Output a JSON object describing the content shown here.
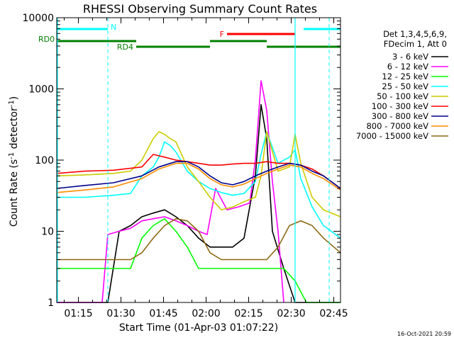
{
  "chart_data": {
    "type": "line",
    "title": "RHESSI Observing Summary Count Rates",
    "xlabel": "Start Time (01-Apr-03 01:07:22)",
    "ylabel_main": "Count Rate (s",
    "ylabel_sup1": "-1",
    "ylabel_mid": " detector",
    "ylabel_sup2": "-1",
    "ylabel_end": ")",
    "x_unit": "minutes after 01:07:22",
    "xlim": [
      0,
      100
    ],
    "ylim": [
      1,
      10000
    ],
    "yscale": "log",
    "x_ticks": [
      {
        "label": "01:15",
        "value": 7.63
      },
      {
        "label": "01:30",
        "value": 22.63
      },
      {
        "label": "01:45",
        "value": 37.63
      },
      {
        "label": "02:00",
        "value": 52.63
      },
      {
        "label": "02:15",
        "value": 67.63
      },
      {
        "label": "02:30",
        "value": 82.63
      },
      {
        "label": "02:45",
        "value": 97.63
      }
    ],
    "y_ticks": [
      {
        "label": "1",
        "value": 1
      },
      {
        "label": "10",
        "value": 10
      },
      {
        "label": "100",
        "value": 100
      },
      {
        "label": "1000",
        "value": 1000
      },
      {
        "label": "10000",
        "value": 10000
      }
    ],
    "legend_header": [
      "Det 1,3,4,5,6,9,",
      "FDecim 1, Att 0"
    ],
    "legend_position": "right",
    "series": [
      {
        "name": "3 - 6 keV",
        "color": "#000000",
        "x": [
          0,
          5,
          10,
          15,
          18,
          22,
          26,
          30,
          34,
          38,
          42,
          46,
          50,
          54,
          58,
          62,
          66,
          70,
          72,
          74,
          76,
          80,
          84,
          88,
          92,
          96,
          100
        ],
        "y": [
          1,
          1,
          1,
          1,
          1,
          10,
          12,
          16,
          18,
          20,
          16,
          12,
          8,
          6,
          6,
          6,
          8,
          60,
          600,
          200,
          10,
          3,
          1,
          1,
          1,
          1,
          1
        ]
      },
      {
        "name": "6 - 12 keV",
        "color": "#ff00ff",
        "x": [
          0,
          10,
          16,
          18,
          22,
          26,
          30,
          34,
          38,
          42,
          46,
          50,
          53,
          56,
          60,
          64,
          68,
          70,
          72,
          74,
          76,
          78,
          80
        ],
        "y": [
          1,
          1,
          1,
          9,
          10,
          11,
          14,
          15,
          16,
          14,
          12,
          10,
          9,
          40,
          20,
          22,
          25,
          100,
          1300,
          500,
          50,
          10,
          1
        ]
      },
      {
        "name": "12 - 25 keV",
        "color": "#00ff00",
        "x": [
          0,
          10,
          20,
          26,
          30,
          34,
          38,
          42,
          46,
          50,
          54,
          58,
          62,
          66,
          70,
          72,
          76,
          80,
          84,
          88,
          92,
          96,
          100
        ],
        "y": [
          3,
          3,
          3,
          3,
          8,
          12,
          15,
          10,
          6,
          3,
          3,
          3,
          3,
          3,
          3,
          3,
          3,
          3,
          2,
          1,
          1,
          1,
          1
        ]
      },
      {
        "name": "25 - 50 keV",
        "color": "#00ffff",
        "x": [
          0,
          10,
          20,
          26,
          30,
          34,
          36,
          38,
          40,
          42,
          46,
          50,
          54,
          58,
          62,
          66,
          70,
          72,
          74,
          78,
          82,
          84,
          86,
          90,
          94,
          100
        ],
        "y": [
          30,
          30,
          32,
          34,
          60,
          80,
          110,
          180,
          160,
          130,
          70,
          50,
          40,
          35,
          32,
          34,
          50,
          120,
          250,
          90,
          110,
          140,
          55,
          22,
          12,
          8
        ]
      },
      {
        "name": "50 - 100 keV",
        "color": "#cccc00",
        "x": [
          0,
          10,
          20,
          26,
          30,
          34,
          36,
          38,
          40,
          42,
          46,
          50,
          54,
          58,
          62,
          66,
          70,
          72,
          74,
          78,
          82,
          84,
          86,
          90,
          94,
          100
        ],
        "y": [
          60,
          62,
          65,
          70,
          100,
          200,
          250,
          230,
          200,
          180,
          80,
          50,
          30,
          20,
          22,
          26,
          30,
          60,
          250,
          70,
          80,
          230,
          90,
          30,
          20,
          16
        ]
      },
      {
        "name": "100 - 300 keV",
        "color": "#ff0000",
        "x": [
          0,
          10,
          20,
          30,
          34,
          38,
          42,
          46,
          50,
          54,
          58,
          62,
          66,
          70,
          74,
          78,
          82,
          86,
          90,
          94,
          100
        ],
        "y": [
          65,
          70,
          72,
          80,
          120,
          110,
          100,
          95,
          90,
          85,
          85,
          88,
          90,
          90,
          95,
          90,
          90,
          85,
          75,
          60,
          40
        ]
      },
      {
        "name": "300 - 800 keV",
        "color": "#00008b",
        "x": [
          0,
          10,
          20,
          30,
          36,
          42,
          46,
          50,
          54,
          58,
          62,
          66,
          70,
          74,
          78,
          82,
          86,
          90,
          94,
          100
        ],
        "y": [
          40,
          44,
          48,
          60,
          80,
          95,
          95,
          80,
          60,
          48,
          45,
          50,
          60,
          70,
          80,
          90,
          85,
          70,
          60,
          40
        ]
      },
      {
        "name": "800 - 7000 keV",
        "color": "#ff8c00",
        "x": [
          0,
          10,
          20,
          30,
          36,
          42,
          46,
          50,
          54,
          58,
          62,
          66,
          70,
          74,
          78,
          82,
          86,
          90,
          94,
          100
        ],
        "y": [
          35,
          38,
          42,
          55,
          75,
          90,
          90,
          75,
          55,
          45,
          42,
          46,
          55,
          65,
          75,
          85,
          80,
          65,
          55,
          38
        ]
      },
      {
        "name": "7000 - 15000 keV",
        "color": "#8b6914",
        "x": [
          0,
          10,
          20,
          26,
          30,
          34,
          38,
          42,
          46,
          50,
          54,
          58,
          62,
          66,
          70,
          74,
          78,
          82,
          86,
          90,
          94,
          100
        ],
        "y": [
          4,
          4,
          4,
          4,
          5,
          8,
          12,
          15,
          14,
          10,
          5,
          4,
          4,
          4,
          4,
          4,
          6,
          12,
          14,
          12,
          8,
          5
        ]
      }
    ],
    "annotations": {
      "bars": [
        {
          "label": "N",
          "color": "#00ffff",
          "x1": 0,
          "x2": 18
        },
        {
          "label": "",
          "color": "#00ffff",
          "x1": 87,
          "x2": 100
        },
        {
          "label": "F",
          "color": "#ff0000",
          "x1": 60,
          "x2": 84
        },
        {
          "label": "RD0",
          "color": "#008000",
          "x1": 0,
          "x2": 28
        },
        {
          "label": "",
          "color": "#008000",
          "x1": 54,
          "x2": 74
        },
        {
          "label": "RD4",
          "color": "#008000",
          "x1": 28,
          "x2": 54
        },
        {
          "label": "",
          "color": "#008000",
          "x1": 74,
          "x2": 100
        }
      ],
      "vlines_dashed": [
        18,
        100
      ],
      "vlines_solid": [
        0,
        84
      ]
    },
    "grid": false,
    "timestamp": "16-Oct-2021 20:59"
  }
}
